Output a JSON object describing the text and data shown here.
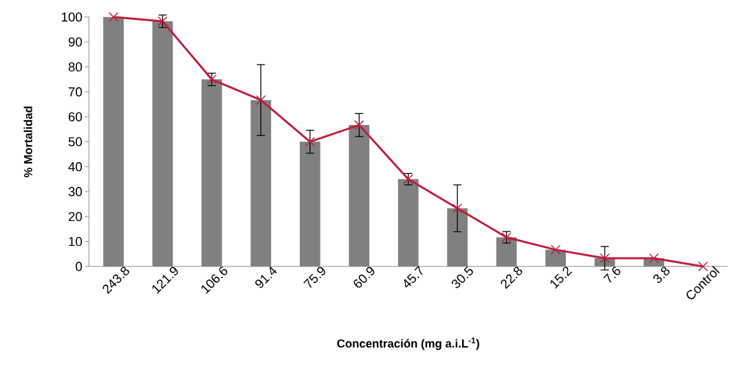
{
  "chart_data": {
    "type": "bar",
    "xlabel": "Concentración (mg a.i.L$^{-1}$)",
    "ylabel": "% Mortalidad",
    "categories": [
      "243.8",
      "121.9",
      "106.6",
      "91.4",
      "75.9",
      "60.9",
      "45.7",
      "30.5",
      "22.8",
      "15.2",
      "7.6",
      "3.8",
      "Control"
    ],
    "series": [
      {
        "type": "bar",
        "color": "#808080",
        "values": [
          100,
          98.3,
          75,
          66.7,
          50,
          56.7,
          35,
          23.3,
          11.7,
          6.7,
          3.3,
          3.3,
          0
        ],
        "errors": [
          null,
          2.5,
          2.5,
          14.2,
          4.6,
          4.6,
          2.3,
          9.4,
          2.3,
          null,
          4.7,
          null,
          null
        ]
      },
      {
        "type": "line",
        "color": "#be1e3c",
        "marker": "cross",
        "line_style": "solid",
        "values": [
          100,
          98.3,
          75,
          66.7,
          50,
          56.7,
          35,
          23.3,
          11.7,
          6.7,
          3.3,
          3.3,
          0
        ]
      }
    ],
    "ylim": [
      0,
      100
    ],
    "yticks": [
      0,
      10,
      20,
      30,
      40,
      50,
      60,
      70,
      80,
      90,
      100
    ]
  }
}
